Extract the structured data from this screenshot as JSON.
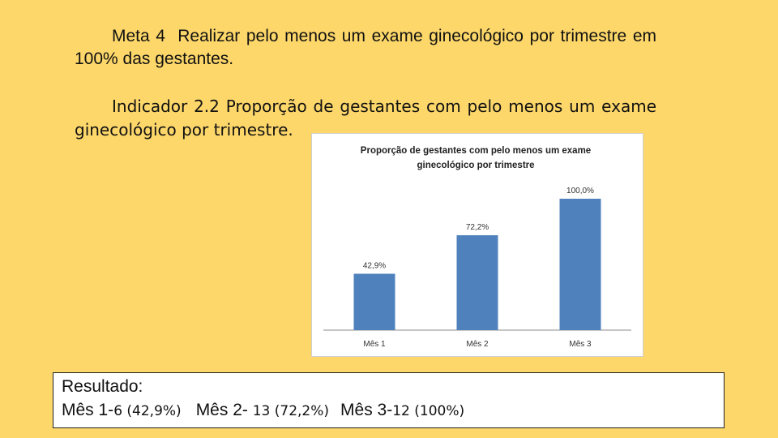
{
  "meta": {
    "label": "Meta 4",
    "text": "Realizar pelo menos um exame ginecológico por trimestre em 100% das gestantes."
  },
  "indicador": {
    "label": "Indicador 2.2",
    "text": "Proporção de gestantes com pelo menos um exame ginecológico por trimestre."
  },
  "chart_data": {
    "type": "bar",
    "title": "Proporção de gestantes com pelo menos um exame ginecológico por trimestre",
    "title_lines": [
      "Proporção de gestantes com pelo menos um exame",
      "ginecológico por trimestre"
    ],
    "categories": [
      "Mês 1",
      "Mês 2",
      "Mês 3"
    ],
    "values": [
      42.9,
      72.2,
      100.0
    ],
    "data_labels": [
      "42,9%",
      "72,2%",
      "100,0%"
    ],
    "ylim": [
      0,
      100
    ],
    "grid": false,
    "legend": "none",
    "bar_color": "#4f81bd"
  },
  "resultado": {
    "title": "Resultado:",
    "items": [
      {
        "label": "Mês 1-",
        "value": "6 (42,9%)"
      },
      {
        "label": "Mês 2-",
        "value": "13 (72,2%)"
      },
      {
        "label": "Mês 3-",
        "value": "12 (100%)"
      }
    ]
  },
  "colors": {
    "background": "#fdd76a",
    "bar": "#4f81bd"
  }
}
